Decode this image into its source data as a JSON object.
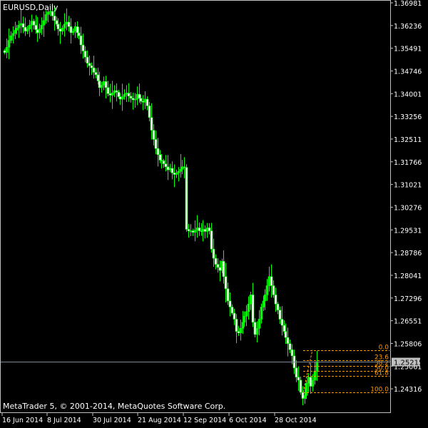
{
  "window": {
    "symbol_label": "EURUSD,Daily",
    "footer": "MetaTrader 5, © 2001-2014, MetaQuotes Software Corp."
  },
  "colors": {
    "background": "#000000",
    "frame": "#c0c0c0",
    "candle": "#00ff00",
    "candle_body": "#ffffff",
    "fib": "#ff9900",
    "price_line": "#778899",
    "text": "#ffffff"
  },
  "chart_data": {
    "type": "candlestick",
    "symbol": "EURUSD",
    "timeframe": "Daily",
    "grid": false,
    "ylim": [
      1.2378,
      1.3698
    ],
    "current_price": "1.25215",
    "y_ticks": [
      "1.36981",
      "1.36236",
      "1.35491",
      "1.34746",
      "1.34001",
      "1.33256",
      "1.32511",
      "1.31766",
      "1.31021",
      "1.30276",
      "1.29531",
      "1.28786",
      "1.28041",
      "1.27296",
      "1.26551",
      "1.25806",
      "1.25061",
      "1.24316"
    ],
    "x_ticks": [
      "16 Jun 2014",
      "8 Jul 2014",
      "30 Jul 2014",
      "21 Aug 2014",
      "12 Sep 2014",
      "6 Oct 2014",
      "28 Oct 2014"
    ],
    "fibonacci": {
      "high": 1.2559,
      "low": 1.242,
      "levels": [
        {
          "label": "0.0",
          "ratio": 0.0
        },
        {
          "label": "23.6",
          "ratio": 0.236
        },
        {
          "label": "38.2",
          "ratio": 0.382
        },
        {
          "label": "50.0",
          "ratio": 0.5
        },
        {
          "label": "61.8",
          "ratio": 0.618
        },
        {
          "label": "100.0",
          "ratio": 1.0
        }
      ]
    },
    "closes": [
      1.3535,
      1.3552,
      1.3575,
      1.359,
      1.3598,
      1.3608,
      1.3615,
      1.3625,
      1.363,
      1.3618,
      1.3605,
      1.3612,
      1.3625,
      1.3638,
      1.3625,
      1.361,
      1.36,
      1.3612,
      1.3625,
      1.364,
      1.366,
      1.3668,
      1.367,
      1.3655,
      1.364,
      1.3628,
      1.3612,
      1.3605,
      1.3615,
      1.3628,
      1.3635,
      1.362,
      1.36,
      1.3605,
      1.362,
      1.36,
      1.359,
      1.356,
      1.354,
      1.352,
      1.35,
      1.3492,
      1.3485,
      1.347,
      1.3462,
      1.3442,
      1.342,
      1.3428,
      1.344,
      1.342,
      1.34,
      1.3395,
      1.3402,
      1.341,
      1.3405,
      1.339,
      1.3382,
      1.339,
      1.3398,
      1.3402,
      1.3392,
      1.3385,
      1.338,
      1.3382,
      1.3398,
      1.3385,
      1.3375,
      1.3372,
      1.3382,
      1.336,
      1.3322,
      1.328,
      1.325,
      1.322,
      1.32,
      1.3182,
      1.318,
      1.317,
      1.316,
      1.315,
      1.3155,
      1.314,
      1.3135,
      1.314,
      1.3145,
      1.3152,
      1.316,
      1.3158,
      1.2955,
      1.295,
      1.295,
      1.2945,
      1.2952,
      1.296,
      1.295,
      1.2948,
      1.2955,
      1.2948,
      1.296,
      1.295,
      1.289,
      1.286,
      1.284,
      1.283,
      1.282,
      1.285,
      1.28,
      1.276,
      1.272,
      1.27,
      1.268,
      1.266,
      1.262,
      1.2615,
      1.263,
      1.265,
      1.267,
      1.2685,
      1.271,
      1.274,
      1.265,
      1.261,
      1.263,
      1.266,
      1.27,
      1.272,
      1.274,
      1.277,
      1.28,
      1.277,
      1.274,
      1.271,
      1.269,
      1.266,
      1.264,
      1.262,
      1.26,
      1.258,
      1.256,
      1.254,
      1.25,
      1.247,
      1.246,
      1.242,
      1.24,
      1.241,
      1.245,
      1.247,
      1.244,
      1.246,
      1.249,
      1.2521
    ]
  }
}
